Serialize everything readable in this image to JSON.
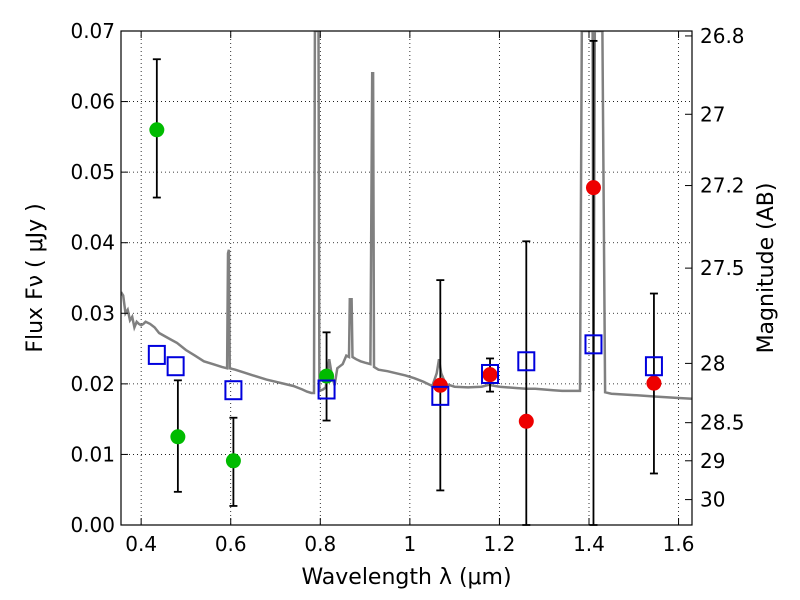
{
  "chart_data": {
    "type": "scatter",
    "xlabel": "Wavelength  λ (μm)",
    "ylabel": "Flux  Fν  ( μJy )",
    "ylabel_right": "Magnitude (AB)",
    "xlim": [
      0.355,
      1.63
    ],
    "ylim": [
      0.0,
      0.07
    ],
    "x_ticks": [
      0.4,
      0.6,
      0.8,
      1.0,
      1.2,
      1.4,
      1.6
    ],
    "x_tick_labels": [
      "0.4",
      "0.6",
      "0.8",
      "1",
      "1.2",
      "1.4",
      "1.6"
    ],
    "y_ticks": [
      0.0,
      0.01,
      0.02,
      0.03,
      0.04,
      0.05,
      0.06,
      0.07
    ],
    "y_tick_labels": [
      "0.00",
      "0.01",
      "0.02",
      "0.03",
      "0.04",
      "0.05",
      "0.06",
      "0.07"
    ],
    "right_ticks": [
      {
        "label": "26.8",
        "flux": 0.0693
      },
      {
        "label": "27",
        "flux": 0.0582
      },
      {
        "label": "27.2",
        "flux": 0.0481
      },
      {
        "label": "27.5",
        "flux": 0.0364
      },
      {
        "label": "28",
        "flux": 0.0229
      },
      {
        "label": "28.5",
        "flux": 0.0145
      },
      {
        "label": "29",
        "flux": 0.0091
      },
      {
        "label": "30",
        "flux": 0.0036
      }
    ],
    "grid": true,
    "colors": {
      "green_points": "#00bb00",
      "red_points": "#ee0000",
      "model_boxes": "#0000dd",
      "spectrum": "#808080",
      "errorbar": "#000000"
    },
    "series": [
      {
        "marker": "green-circle",
        "points": [
          {
            "x": 0.435,
            "y": 0.056,
            "ylo": 0.0464,
            "yhi": 0.066
          },
          {
            "x": 0.482,
            "y": 0.0125,
            "ylo": 0.0047,
            "yhi": 0.0205
          },
          {
            "x": 0.606,
            "y": 0.0091,
            "ylo": 0.0027,
            "yhi": 0.0152
          },
          {
            "x": 0.814,
            "y": 0.0211,
            "ylo": 0.0148,
            "yhi": 0.0273
          }
        ]
      },
      {
        "marker": "red-circle",
        "points": [
          {
            "x": 1.068,
            "y": 0.0198,
            "ylo": 0.0049,
            "yhi": 0.0347
          },
          {
            "x": 1.179,
            "y": 0.0213,
            "ylo": 0.0189,
            "yhi": 0.0236
          },
          {
            "x": 1.26,
            "y": 0.0147,
            "ylo": 0.0,
            "yhi": 0.0402
          },
          {
            "x": 1.41,
            "y": 0.0478,
            "ylo": 0.0,
            "yhi": 0.0686
          },
          {
            "x": 1.545,
            "y": 0.0201,
            "ylo": 0.0073,
            "yhi": 0.0328
          }
        ]
      },
      {
        "marker": "blue-square",
        "points": [
          {
            "x": 0.435,
            "y": 0.0241
          },
          {
            "x": 0.477,
            "y": 0.0225
          },
          {
            "x": 0.606,
            "y": 0.0191
          },
          {
            "x": 0.814,
            "y": 0.0192
          },
          {
            "x": 1.068,
            "y": 0.0183
          },
          {
            "x": 1.179,
            "y": 0.0214
          },
          {
            "x": 1.26,
            "y": 0.0232
          },
          {
            "x": 1.41,
            "y": 0.0256
          },
          {
            "x": 1.545,
            "y": 0.0225
          }
        ]
      }
    ],
    "spectrum": [
      [
        0.355,
        0.033
      ],
      [
        0.36,
        0.0325
      ],
      [
        0.365,
        0.03
      ],
      [
        0.37,
        0.0305
      ],
      [
        0.375,
        0.029
      ],
      [
        0.38,
        0.0295
      ],
      [
        0.385,
        0.028
      ],
      [
        0.39,
        0.0288
      ],
      [
        0.395,
        0.0285
      ],
      [
        0.4,
        0.0283
      ],
      [
        0.405,
        0.0285
      ],
      [
        0.41,
        0.0288
      ],
      [
        0.42,
        0.0285
      ],
      [
        0.43,
        0.028
      ],
      [
        0.44,
        0.0272
      ],
      [
        0.46,
        0.0265
      ],
      [
        0.48,
        0.0258
      ],
      [
        0.5,
        0.0248
      ],
      [
        0.52,
        0.024
      ],
      [
        0.54,
        0.0232
      ],
      [
        0.56,
        0.0228
      ],
      [
        0.58,
        0.0224
      ],
      [
        0.592,
        0.0222
      ],
      [
        0.594,
        0.0385
      ],
      [
        0.596,
        0.039
      ],
      [
        0.598,
        0.0222
      ],
      [
        0.61,
        0.022
      ],
      [
        0.63,
        0.0216
      ],
      [
        0.65,
        0.0212
      ],
      [
        0.68,
        0.0206
      ],
      [
        0.7,
        0.0203
      ],
      [
        0.72,
        0.02
      ],
      [
        0.74,
        0.0197
      ],
      [
        0.76,
        0.0192
      ],
      [
        0.77,
        0.0189
      ],
      [
        0.78,
        0.0187
      ],
      [
        0.786,
        0.0187
      ],
      [
        0.788,
        0.07
      ],
      [
        0.796,
        0.07
      ],
      [
        0.798,
        0.019
      ],
      [
        0.806,
        0.0192
      ],
      [
        0.812,
        0.0195
      ],
      [
        0.816,
        0.0215
      ],
      [
        0.82,
        0.0235
      ],
      [
        0.826,
        0.0212
      ],
      [
        0.832,
        0.0198
      ],
      [
        0.838,
        0.0222
      ],
      [
        0.844,
        0.0225
      ],
      [
        0.85,
        0.0228
      ],
      [
        0.858,
        0.024
      ],
      [
        0.864,
        0.0238
      ],
      [
        0.866,
        0.032
      ],
      [
        0.87,
        0.032
      ],
      [
        0.872,
        0.0238
      ],
      [
        0.88,
        0.0235
      ],
      [
        0.89,
        0.0232
      ],
      [
        0.9,
        0.023
      ],
      [
        0.912,
        0.0228
      ],
      [
        0.916,
        0.064
      ],
      [
        0.918,
        0.064
      ],
      [
        0.92,
        0.0224
      ],
      [
        0.93,
        0.022
      ],
      [
        0.95,
        0.0218
      ],
      [
        0.97,
        0.0215
      ],
      [
        0.99,
        0.0212
      ],
      [
        1.01,
        0.0208
      ],
      [
        1.03,
        0.0203
      ],
      [
        1.05,
        0.0197
      ],
      [
        1.06,
        0.0215
      ],
      [
        1.065,
        0.0235
      ],
      [
        1.07,
        0.0215
      ],
      [
        1.08,
        0.02
      ],
      [
        1.1,
        0.0196
      ],
      [
        1.13,
        0.0195
      ],
      [
        1.16,
        0.0196
      ],
      [
        1.178,
        0.0199
      ],
      [
        1.18,
        0.021
      ],
      [
        1.182,
        0.0198
      ],
      [
        1.2,
        0.0196
      ],
      [
        1.24,
        0.0194
      ],
      [
        1.26,
        0.0193
      ],
      [
        1.28,
        0.0193
      ],
      [
        1.3,
        0.0192
      ],
      [
        1.32,
        0.0191
      ],
      [
        1.34,
        0.019
      ],
      [
        1.36,
        0.019
      ],
      [
        1.38,
        0.019
      ],
      [
        1.384,
        0.07
      ],
      [
        1.408,
        0.07
      ],
      [
        1.41,
        0.019
      ],
      [
        1.413,
        0.07
      ],
      [
        1.43,
        0.07
      ],
      [
        1.436,
        0.0188
      ],
      [
        1.45,
        0.0186
      ],
      [
        1.5,
        0.0184
      ],
      [
        1.55,
        0.0182
      ],
      [
        1.6,
        0.018
      ],
      [
        1.63,
        0.0179
      ]
    ]
  }
}
